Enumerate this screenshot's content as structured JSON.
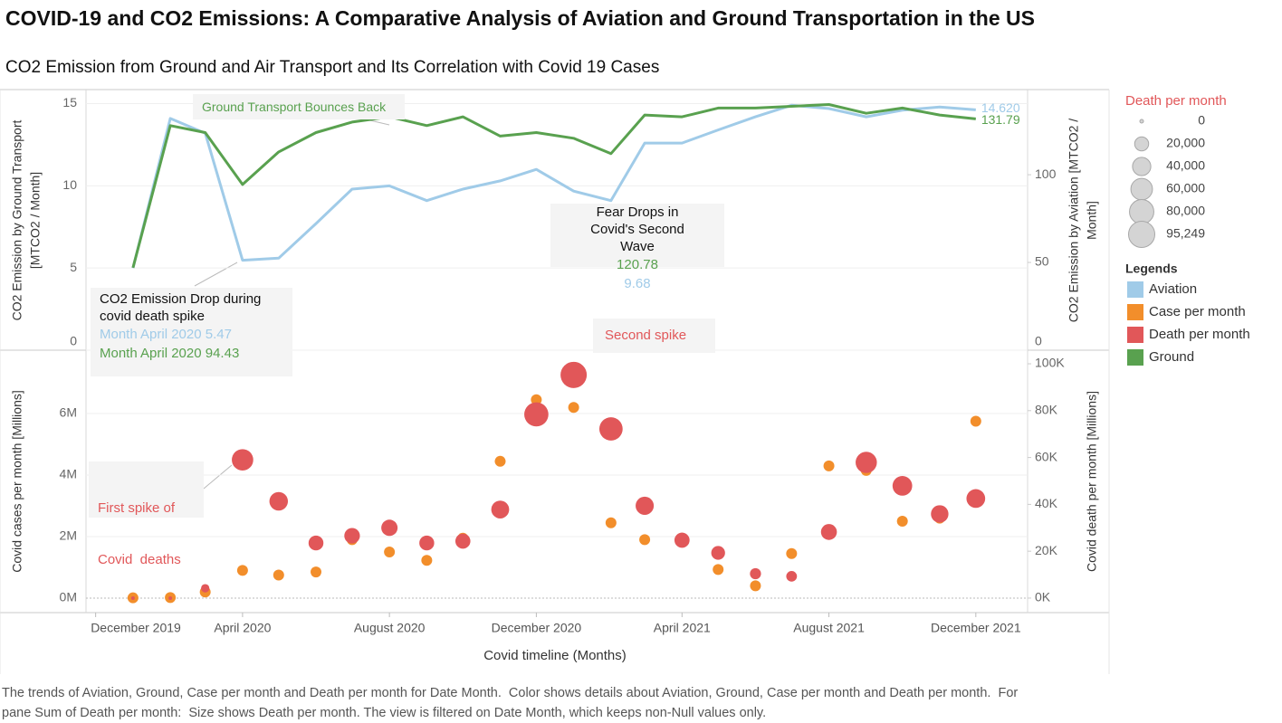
{
  "title": "COVID-19 and CO2 Emissions: A Comparative Analysis of Aviation and Ground Transportation in the US",
  "subtitle": "CO2 Emission from Ground and Air Transport and Its Correlation with Covid 19 Cases",
  "caption": "The trends of Aviation, Ground, Case per month and Death per month for Date Month.  Color shows details about Aviation, Ground, Case per month and Death per month.  For pane Sum of Death per month:  Size shows Death per month. The view is filtered on Date Month, which keeps non-Null values only.",
  "color_legend_title": "Legends",
  "chart_data": [
    {
      "type": "line",
      "x": [
        "2020-01",
        "2020-02",
        "2020-03",
        "2020-04",
        "2020-05",
        "2020-06",
        "2020-07",
        "2020-08",
        "2020-09",
        "2020-10",
        "2020-11",
        "2020-12",
        "2021-01",
        "2021-02",
        "2021-03",
        "2021-04",
        "2021-05",
        "2021-06",
        "2021-07",
        "2021-08",
        "2021-09",
        "2021-10",
        "2021-11",
        "2021-12"
      ],
      "xlim": [
        "2019-11-23",
        "2022-01-13"
      ],
      "ylim": [
        0,
        15.8
      ],
      "yticks": [
        0,
        5,
        10,
        15
      ],
      "y2lim": [
        0,
        148
      ],
      "y2ticks": [
        0,
        50,
        100
      ],
      "ylabel": [
        "CO2 Emission by Ground Transport",
        "[MTCO2 / Month]"
      ],
      "y2label": [
        "CO2 Emission by Aviation [MTCO2 /",
        "Month]"
      ],
      "grid": true,
      "series": [
        {
          "name": "Aviation",
          "color": "#a0cbe8",
          "end_label": "14.620",
          "values": [
            5.0,
            14.1,
            13.2,
            5.47,
            5.6,
            7.7,
            9.8,
            10.0,
            9.1,
            9.8,
            10.3,
            11.0,
            9.68,
            9.1,
            12.6,
            12.6,
            13.4,
            14.2,
            14.9,
            14.7,
            14.2,
            14.6,
            14.8,
            14.62
          ]
        },
        {
          "name": "Ground",
          "color": "#59a14f",
          "axis": "y2",
          "values": [
            47,
            128,
            124,
            94.43,
            113,
            124,
            130,
            133,
            128,
            133,
            122,
            124,
            120.78,
            112,
            134,
            133,
            138,
            138,
            139,
            140,
            135,
            138,
            134,
            131.79
          ]
        }
      ],
      "annotations": [
        {
          "text": "Ground Transport Bounces Back"
        },
        {
          "text": "Fear Drops in Covid's Second Wave"
        },
        {
          "text": "CO2 Emission Drop during covid death spike",
          "label": "Month April 2020"
        }
      ]
    },
    {
      "type": "scatter",
      "x": [
        "2020-01",
        "2020-02",
        "2020-03",
        "2020-04",
        "2020-05",
        "2020-06",
        "2020-07",
        "2020-08",
        "2020-09",
        "2020-10",
        "2020-11",
        "2020-12",
        "2021-01",
        "2021-02",
        "2021-03",
        "2021-04",
        "2021-05",
        "2021-06",
        "2021-07",
        "2021-08",
        "2021-09",
        "2021-10",
        "2021-11",
        "2021-12"
      ],
      "xlim": [
        "2019-11-23",
        "2022-01-13"
      ],
      "xticks": [
        {
          "value": "2019-12",
          "label": "December 2019"
        },
        {
          "value": "2020-04",
          "label": "April 2020"
        },
        {
          "value": "2020-08",
          "label": "August 2020"
        },
        {
          "value": "2020-12",
          "label": "December 2020"
        },
        {
          "value": "2021-04",
          "label": "April 2021"
        },
        {
          "value": "2021-08",
          "label": "August 2021"
        },
        {
          "value": "2021-12",
          "label": "December 2021"
        }
      ],
      "xlabel": "Covid timeline (Months)",
      "ylim": [
        -470000,
        8060000
      ],
      "yticks": [
        {
          "value": 0,
          "label": "0M"
        },
        {
          "value": 2000000,
          "label": "2M"
        },
        {
          "value": 4000000,
          "label": "4M"
        },
        {
          "value": 6000000,
          "label": "6M"
        }
      ],
      "y2lim": [
        -6200,
        105800
      ],
      "y2ticks": [
        {
          "value": 0,
          "label": "0K"
        },
        {
          "value": 20000,
          "label": "20K"
        },
        {
          "value": 40000,
          "label": "40K"
        },
        {
          "value": 60000,
          "label": "60K"
        },
        {
          "value": 80000,
          "label": "80K"
        },
        {
          "value": 100000,
          "label": "100K"
        }
      ],
      "ylabel": "Covid cases per month [Millions]",
      "y2label": "Covid death per month [Millions]",
      "grid": true,
      "series": [
        {
          "name": "Case per month",
          "color": "#f28e2b",
          "values": [
            10000,
            20000,
            200000,
            900000,
            750000,
            850000,
            1900000,
            1500000,
            1230000,
            1950000,
            4450000,
            6450000,
            6200000,
            2450000,
            1900000,
            1950000,
            930000,
            400000,
            1450000,
            4300000,
            4150000,
            2500000,
            2600000,
            5750000
          ]
        },
        {
          "name": "Death per month",
          "color": "#e15759",
          "axis": "y2",
          "values": [
            0,
            0,
            4200,
            59000,
            41300,
            23500,
            26600,
            30000,
            23500,
            24300,
            37800,
            78400,
            95249,
            72200,
            39400,
            24700,
            19300,
            10400,
            9300,
            28200,
            57900,
            47900,
            35900,
            42500
          ]
        }
      ],
      "size_legend": [
        0,
        {
          "value": 20000,
          "label": "20,000"
        },
        {
          "value": 40000,
          "label": "40,000"
        },
        {
          "value": 60000,
          "label": "60,000"
        },
        {
          "value": 80000,
          "label": "80,000"
        },
        {
          "value": 95249,
          "label": "95,249"
        }
      ],
      "annotations": [
        {
          "lines": [
            "First spike of",
            "Covid  deaths"
          ]
        },
        {
          "text": "Second spike"
        }
      ]
    }
  ]
}
